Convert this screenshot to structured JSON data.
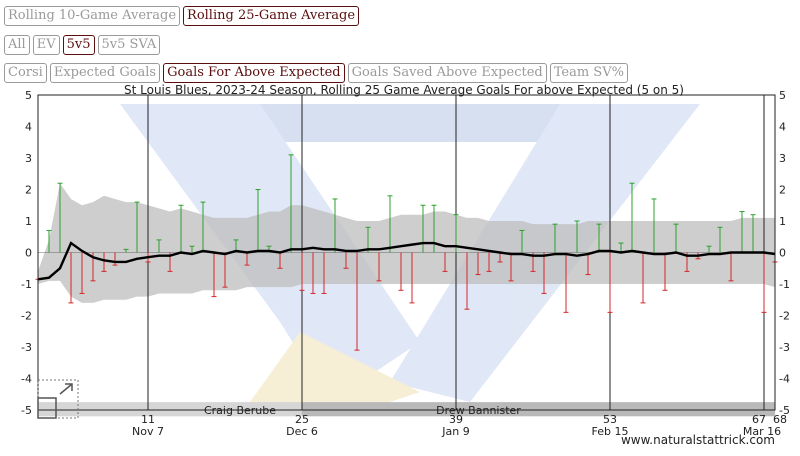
{
  "buttons": {
    "row1": [
      {
        "label": "Rolling 10-Game Average",
        "active": false
      },
      {
        "label": "Rolling 25-Game Average",
        "active": true
      }
    ],
    "row2": [
      {
        "label": "All",
        "active": false
      },
      {
        "label": "EV",
        "active": false
      },
      {
        "label": "5v5",
        "active": true
      },
      {
        "label": "5v5 SVA",
        "active": false
      }
    ],
    "row3": [
      {
        "label": "Corsi",
        "active": false
      },
      {
        "label": "Expected Goals",
        "active": false
      },
      {
        "label": "Goals For Above Expected",
        "active": true
      },
      {
        "label": "Goals Saved Above Expected",
        "active": false
      },
      {
        "label": "Team SV%",
        "active": false
      }
    ]
  },
  "credit": "www.naturalstattrick.com",
  "colors": {
    "positive": "#2ca02c",
    "negative": "#d62728",
    "rolling": "#000000",
    "band": "#bdbdbd",
    "accent": "#5a0e0e"
  },
  "chart_data": {
    "type": "line",
    "title": "St Louis Blues, 2023-24 Season, Rolling 25 Game Average Goals For above Expected (5 on 5)",
    "ylim": [
      -5,
      5
    ],
    "y_ticks": [
      "5",
      "4",
      "3",
      "2",
      "1",
      "0",
      "-1",
      "-2",
      "-3",
      "-4",
      "-5"
    ],
    "xlim": [
      1,
      68
    ],
    "game_ticks": [
      {
        "game": 11,
        "label": "11",
        "date": "Nov 7"
      },
      {
        "game": 25,
        "label": "25",
        "date": "Dec 6"
      },
      {
        "game": 39,
        "label": "39",
        "date": "Jan 9"
      },
      {
        "game": 53,
        "label": "53",
        "date": "Feb 15"
      },
      {
        "game": 67,
        "label": "67",
        "date": ""
      },
      {
        "game": 68,
        "label": "68",
        "date": "Mar 16"
      }
    ],
    "coaches": [
      {
        "name": "Craig Berube",
        "from_game": 1,
        "to_game": 25
      },
      {
        "name": "Drew Bannister",
        "from_game": 25,
        "to_game": 68
      }
    ],
    "game_values": [
      -0.85,
      0.7,
      2.2,
      -1.6,
      -1.3,
      -0.9,
      -0.6,
      -0.4,
      0.1,
      1.6,
      -0.3,
      0.4,
      -0.6,
      1.5,
      0.2,
      1.6,
      -1.4,
      -1.1,
      0.4,
      -0.4,
      2.0,
      0.2,
      -0.5,
      3.1,
      -1.2,
      -1.3,
      -1.3,
      1.7,
      -0.5,
      -3.1,
      0.8,
      -0.9,
      1.8,
      -1.2,
      -1.6,
      1.5,
      1.5,
      -0.6,
      1.2,
      -1.8,
      -0.7,
      -0.6,
      -0.3,
      -0.9,
      0.7,
      -0.6,
      -1.3,
      0.9,
      -1.9,
      1.0,
      -0.7,
      0.9,
      -1.9,
      0.3,
      2.2,
      -1.6,
      1.7,
      -1.2,
      0.9,
      -0.6,
      -0.2,
      0.2,
      0.8,
      -0.9,
      1.3,
      1.2,
      -1.9,
      -0.3
    ],
    "rolling_average": [
      -0.85,
      -0.8,
      -0.5,
      0.3,
      0.05,
      -0.15,
      -0.25,
      -0.3,
      -0.3,
      -0.2,
      -0.15,
      -0.1,
      -0.1,
      0.0,
      -0.05,
      0.05,
      0.0,
      -0.05,
      0.05,
      0.0,
      0.05,
      0.05,
      0.0,
      0.1,
      0.1,
      0.15,
      0.1,
      0.1,
      0.05,
      0.05,
      0.1,
      0.1,
      0.15,
      0.2,
      0.25,
      0.3,
      0.3,
      0.2,
      0.2,
      0.15,
      0.1,
      0.05,
      0.0,
      -0.05,
      -0.05,
      -0.1,
      -0.1,
      -0.05,
      -0.05,
      -0.1,
      -0.05,
      0.05,
      0.05,
      0.0,
      0.05,
      0.0,
      -0.05,
      -0.05,
      0.0,
      -0.1,
      -0.1,
      -0.05,
      -0.05,
      0.0,
      0.0,
      0.0,
      0.0,
      -0.05
    ],
    "band_upper": [
      -0.6,
      0.4,
      2.2,
      1.7,
      1.5,
      1.6,
      1.8,
      1.7,
      1.6,
      1.6,
      1.5,
      1.4,
      1.3,
      1.4,
      1.3,
      1.2,
      1.1,
      1.1,
      1.1,
      1.1,
      1.2,
      1.3,
      1.3,
      1.5,
      1.5,
      1.4,
      1.3,
      1.2,
      1.1,
      1.0,
      1.0,
      1.0,
      1.1,
      1.2,
      1.2,
      1.2,
      1.3,
      1.3,
      1.2,
      1.1,
      1.1,
      1.0,
      1.0,
      1.0,
      1.0,
      0.9,
      0.9,
      0.9,
      0.9,
      0.9,
      1.0,
      1.0,
      1.0,
      1.0,
      1.0,
      1.0,
      1.0,
      1.0,
      1.0,
      1.0,
      1.0,
      1.0,
      1.0,
      1.0,
      1.1,
      1.1,
      1.1,
      1.1
    ],
    "band_lower": [
      -1.0,
      -0.9,
      -0.9,
      -1.4,
      -1.6,
      -1.6,
      -1.5,
      -1.5,
      -1.5,
      -1.4,
      -1.4,
      -1.3,
      -1.3,
      -1.3,
      -1.3,
      -1.2,
      -1.2,
      -1.2,
      -1.2,
      -1.1,
      -1.1,
      -1.1,
      -1.1,
      -1.1,
      -1.0,
      -1.0,
      -1.0,
      -1.0,
      -1.0,
      -1.0,
      -1.0,
      -1.0,
      -1.0,
      -1.0,
      -1.0,
      -1.0,
      -1.0,
      -1.0,
      -1.0,
      -1.0,
      -1.0,
      -1.0,
      -1.0,
      -1.0,
      -1.0,
      -1.0,
      -1.0,
      -1.0,
      -1.0,
      -1.0,
      -1.0,
      -1.0,
      -1.0,
      -1.0,
      -1.0,
      -1.0,
      -1.0,
      -1.0,
      -1.0,
      -1.0,
      -1.0,
      -1.0,
      -1.0,
      -1.0,
      -1.0,
      -1.0,
      -1.0,
      -1.1
    ],
    "grid": false
  }
}
